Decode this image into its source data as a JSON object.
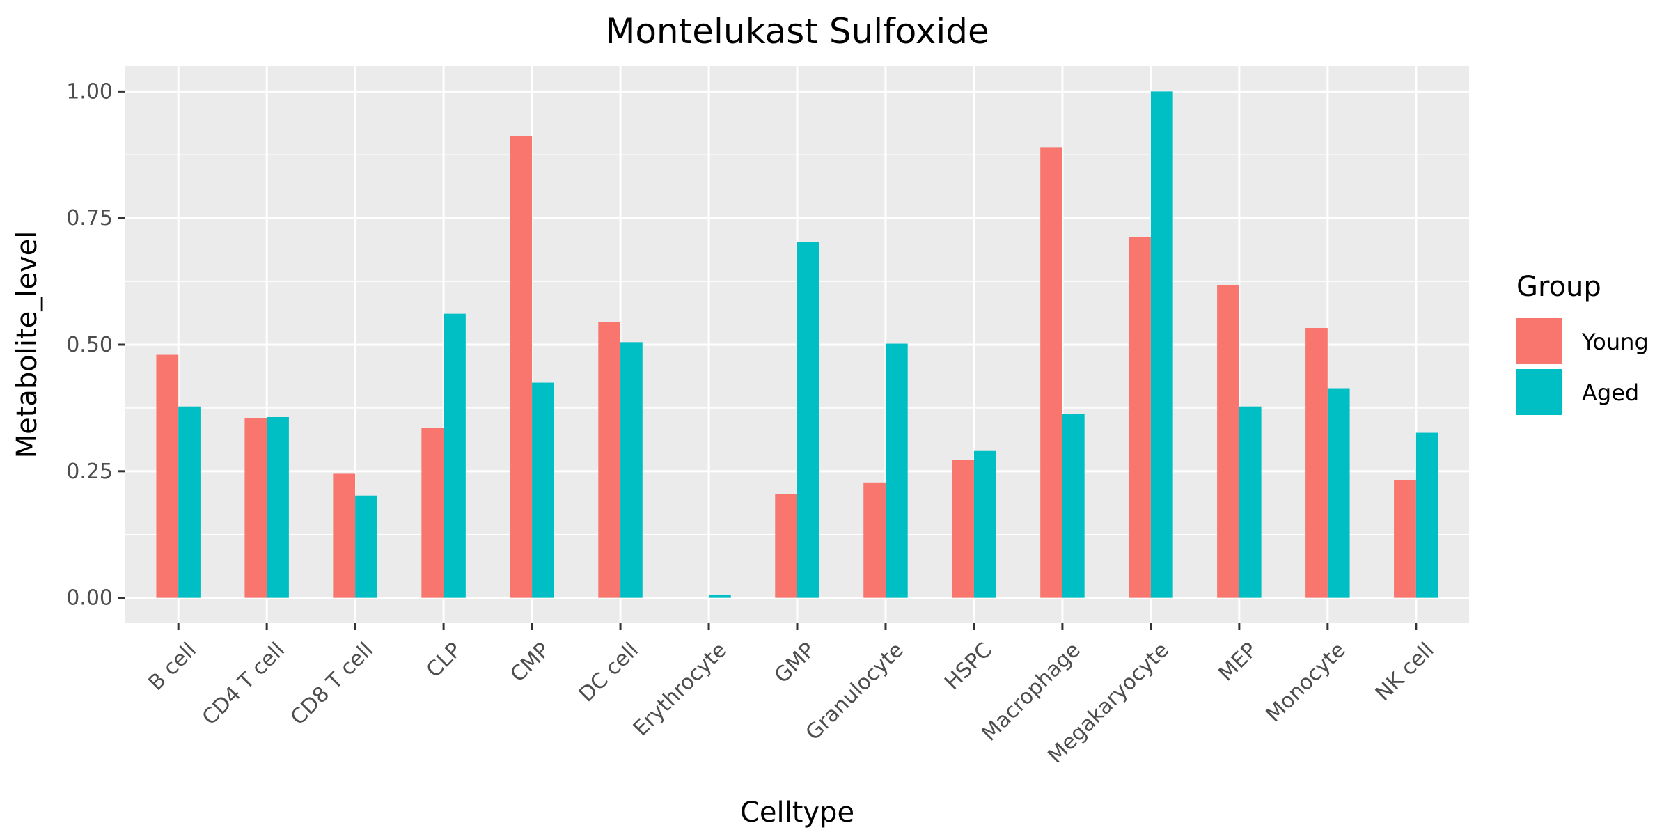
{
  "chart_data": {
    "type": "bar",
    "title": "Montelukast Sulfoxide",
    "xlabel": "Celltype",
    "ylabel": "Metabolite_level",
    "ylim": [
      -0.05,
      1.05
    ],
    "yticks": [
      0.0,
      0.25,
      0.5,
      0.75,
      1.0
    ],
    "ytick_labels": [
      "0.00",
      "0.25",
      "0.50",
      "0.75",
      "1.00"
    ],
    "grid": true,
    "legend": {
      "title": "Group",
      "position": "right"
    },
    "categories": [
      "B cell",
      "CD4 T cell",
      "CD8 T cell",
      "CLP",
      "CMP",
      "DC cell",
      "Erythrocyte",
      "GMP",
      "Granulocyte",
      "HSPC",
      "Macrophage",
      "Megakaryocyte",
      "MEP",
      "Monocyte",
      "NK cell"
    ],
    "series": [
      {
        "name": "Young",
        "color": "#F8766D",
        "values": [
          0.48,
          0.355,
          0.245,
          0.335,
          0.912,
          0.545,
          0.0,
          0.205,
          0.228,
          0.272,
          0.89,
          0.712,
          0.617,
          0.533,
          0.233
        ]
      },
      {
        "name": "Aged",
        "color": "#00BFC4",
        "values": [
          0.378,
          0.357,
          0.202,
          0.561,
          0.425,
          0.505,
          0.005,
          0.703,
          0.502,
          0.29,
          0.363,
          1.0,
          0.378,
          0.414,
          0.326
        ]
      }
    ]
  }
}
